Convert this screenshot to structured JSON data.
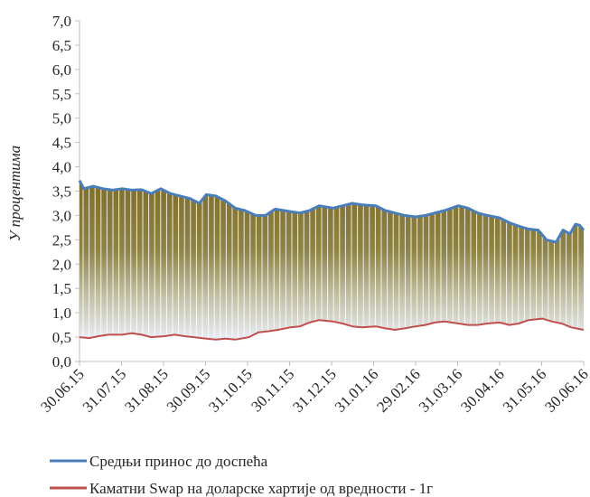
{
  "chart_data": {
    "type": "area",
    "ylabel": "У процентима",
    "ylim": [
      0,
      7
    ],
    "y_ticks": [
      "0,0",
      "0,5",
      "1,0",
      "1,5",
      "2,0",
      "2,5",
      "3,0",
      "3,5",
      "4,0",
      "4,5",
      "5,0",
      "5,5",
      "6,0",
      "6,5",
      "7,0"
    ],
    "x_range": [
      "2015-06-30",
      "2016-06-30"
    ],
    "x_ticks": [
      "30.06.15",
      "31.07.15",
      "31.08.15",
      "30.09.15",
      "31.10.15",
      "30.11.15",
      "31.12.15",
      "31.01.16",
      "29.02.16",
      "31.03.16",
      "30.04.16",
      "31.05.16",
      "30.06.16"
    ],
    "gridlines": false,
    "fill_between_series": true,
    "legend_position": "bottom",
    "series": [
      {
        "name": "Средњи принос до доспећа",
        "color": "#4a7ebb",
        "points": [
          [
            "2015-06-30",
            3.72
          ],
          [
            "2015-07-03",
            3.55
          ],
          [
            "2015-07-10",
            3.6
          ],
          [
            "2015-07-17",
            3.55
          ],
          [
            "2015-07-24",
            3.52
          ],
          [
            "2015-07-31",
            3.55
          ],
          [
            "2015-08-07",
            3.52
          ],
          [
            "2015-08-14",
            3.53
          ],
          [
            "2015-08-21",
            3.45
          ],
          [
            "2015-08-28",
            3.55
          ],
          [
            "2015-09-04",
            3.45
          ],
          [
            "2015-09-11",
            3.4
          ],
          [
            "2015-09-18",
            3.35
          ],
          [
            "2015-09-25",
            3.25
          ],
          [
            "2015-09-30",
            3.43
          ],
          [
            "2015-10-07",
            3.4
          ],
          [
            "2015-10-14",
            3.3
          ],
          [
            "2015-10-21",
            3.15
          ],
          [
            "2015-10-28",
            3.1
          ],
          [
            "2015-11-05",
            3.0
          ],
          [
            "2015-11-12",
            3.0
          ],
          [
            "2015-11-19",
            3.13
          ],
          [
            "2015-11-30",
            3.08
          ],
          [
            "2015-12-07",
            3.05
          ],
          [
            "2015-12-14",
            3.1
          ],
          [
            "2015-12-21",
            3.2
          ],
          [
            "2015-12-31",
            3.15
          ],
          [
            "2016-01-07",
            3.2
          ],
          [
            "2016-01-14",
            3.25
          ],
          [
            "2016-01-21",
            3.22
          ],
          [
            "2016-01-31",
            3.2
          ],
          [
            "2016-02-07",
            3.1
          ],
          [
            "2016-02-14",
            3.05
          ],
          [
            "2016-02-21",
            3.0
          ],
          [
            "2016-02-29",
            2.97
          ],
          [
            "2016-03-07",
            3.0
          ],
          [
            "2016-03-14",
            3.05
          ],
          [
            "2016-03-21",
            3.1
          ],
          [
            "2016-03-31",
            3.2
          ],
          [
            "2016-04-07",
            3.15
          ],
          [
            "2016-04-14",
            3.05
          ],
          [
            "2016-04-21",
            3.0
          ],
          [
            "2016-04-30",
            2.95
          ],
          [
            "2016-05-07",
            2.85
          ],
          [
            "2016-05-14",
            2.78
          ],
          [
            "2016-05-21",
            2.72
          ],
          [
            "2016-05-28",
            2.7
          ],
          [
            "2016-06-03",
            2.5
          ],
          [
            "2016-06-10",
            2.45
          ],
          [
            "2016-06-15",
            2.7
          ],
          [
            "2016-06-20",
            2.62
          ],
          [
            "2016-06-24",
            2.82
          ],
          [
            "2016-06-27",
            2.8
          ],
          [
            "2016-06-30",
            2.7
          ]
        ]
      },
      {
        "name": "Каматни Swap на доларске хартије од вредности - 1г",
        "color": "#c0504d",
        "points": [
          [
            "2015-06-30",
            0.5
          ],
          [
            "2015-07-07",
            0.48
          ],
          [
            "2015-07-14",
            0.52
          ],
          [
            "2015-07-21",
            0.55
          ],
          [
            "2015-07-31",
            0.55
          ],
          [
            "2015-08-07",
            0.58
          ],
          [
            "2015-08-14",
            0.55
          ],
          [
            "2015-08-21",
            0.5
          ],
          [
            "2015-08-31",
            0.52
          ],
          [
            "2015-09-07",
            0.55
          ],
          [
            "2015-09-14",
            0.52
          ],
          [
            "2015-09-21",
            0.5
          ],
          [
            "2015-09-30",
            0.47
          ],
          [
            "2015-10-07",
            0.45
          ],
          [
            "2015-10-14",
            0.47
          ],
          [
            "2015-10-21",
            0.45
          ],
          [
            "2015-10-31",
            0.5
          ],
          [
            "2015-11-07",
            0.6
          ],
          [
            "2015-11-14",
            0.62
          ],
          [
            "2015-11-21",
            0.65
          ],
          [
            "2015-11-30",
            0.7
          ],
          [
            "2015-12-07",
            0.72
          ],
          [
            "2015-12-14",
            0.8
          ],
          [
            "2015-12-21",
            0.85
          ],
          [
            "2015-12-31",
            0.82
          ],
          [
            "2016-01-07",
            0.78
          ],
          [
            "2016-01-14",
            0.72
          ],
          [
            "2016-01-21",
            0.7
          ],
          [
            "2016-01-31",
            0.72
          ],
          [
            "2016-02-07",
            0.68
          ],
          [
            "2016-02-14",
            0.65
          ],
          [
            "2016-02-21",
            0.68
          ],
          [
            "2016-02-29",
            0.72
          ],
          [
            "2016-03-07",
            0.75
          ],
          [
            "2016-03-14",
            0.8
          ],
          [
            "2016-03-21",
            0.82
          ],
          [
            "2016-03-31",
            0.78
          ],
          [
            "2016-04-07",
            0.75
          ],
          [
            "2016-04-14",
            0.75
          ],
          [
            "2016-04-21",
            0.78
          ],
          [
            "2016-04-30",
            0.8
          ],
          [
            "2016-05-07",
            0.75
          ],
          [
            "2016-05-14",
            0.78
          ],
          [
            "2016-05-21",
            0.85
          ],
          [
            "2016-05-31",
            0.88
          ],
          [
            "2016-06-07",
            0.82
          ],
          [
            "2016-06-14",
            0.78
          ],
          [
            "2016-06-21",
            0.7
          ],
          [
            "2016-06-30",
            0.65
          ]
        ]
      }
    ]
  }
}
